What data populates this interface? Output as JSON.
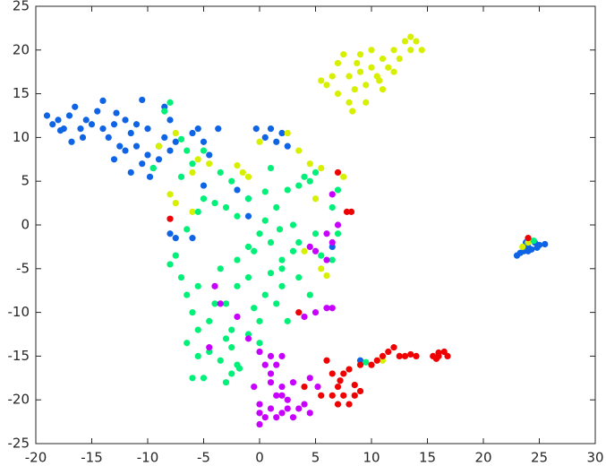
{
  "chart_data": {
    "type": "scatter",
    "xlim": [
      -20,
      30
    ],
    "ylim": [
      -25,
      25
    ],
    "xticks": [
      -20,
      -15,
      -10,
      -5,
      0,
      5,
      10,
      15,
      20,
      25,
      30
    ],
    "yticks": [
      -25,
      -20,
      -15,
      -10,
      -5,
      0,
      5,
      10,
      15,
      20,
      25
    ],
    "grid": false,
    "series": [
      {
        "color": "#0f64e6",
        "x": [
          -19,
          -18.5,
          -18,
          -17.5,
          -17,
          -16.5,
          -16,
          -15.8,
          -15.5,
          -15,
          -14.5,
          -14,
          -14,
          -13.5,
          -13,
          -12.5,
          -12,
          -12,
          -11.5,
          -11,
          -11,
          -10.5,
          -10.5,
          -10,
          -10,
          -9.5,
          -9,
          -9,
          -8.5,
          -8.5,
          -8,
          -8,
          -7.5,
          -9.8,
          -11.5,
          -13,
          -12.8,
          -17.8,
          -16.8,
          -5.5,
          -5,
          -4.5,
          -3.7,
          -6,
          -5,
          -1,
          -1,
          -0.3,
          1,
          2,
          1.5,
          0.5,
          2.5,
          -2,
          -6,
          -7.5,
          -8,
          23,
          23.3,
          23.6,
          24,
          24.3,
          24.6,
          25,
          25.5,
          24,
          23.8,
          24.8,
          9,
          6.5
        ],
        "y": [
          12.5,
          11.5,
          12,
          11,
          12.5,
          13.5,
          11,
          10,
          12,
          11.5,
          13,
          14.2,
          11,
          10,
          11.5,
          9,
          8.5,
          12,
          10.5,
          9,
          11.5,
          14.3,
          7,
          8,
          11,
          6.5,
          9,
          7.5,
          13.5,
          10,
          8.5,
          12,
          9.5,
          5.5,
          6,
          7.5,
          12.8,
          10.8,
          9.5,
          11,
          9.5,
          8,
          11,
          10.5,
          4.5,
          3,
          1,
          11,
          11,
          10.5,
          9.5,
          10,
          9,
          4,
          -1.5,
          -1.5,
          -1,
          -3.5,
          -3.2,
          -3,
          -2.5,
          -2.8,
          -2,
          -2.3,
          -2.2,
          -3,
          -2,
          -2.6,
          -15.5,
          -2.5
        ]
      },
      {
        "color": "#d7f000",
        "x": [
          5.5,
          6,
          6.5,
          7,
          7.5,
          8,
          8,
          8.3,
          8.5,
          9,
          9,
          9.5,
          9.5,
          10,
          10,
          10.5,
          11,
          11,
          11.5,
          12,
          12,
          12.5,
          13,
          13.5,
          13.5,
          14,
          14.5,
          10.7,
          7,
          8.7,
          -8,
          -7.5,
          -9,
          -7.5,
          -5.5,
          -4.5,
          -6,
          -2,
          -1.5,
          -1,
          0,
          2.5,
          3.5,
          4.5,
          5.5,
          5,
          7.5,
          -6,
          5.5,
          4,
          24,
          23.5,
          11,
          6
        ],
        "y": [
          16.5,
          16,
          17,
          18.5,
          19.5,
          17,
          14,
          13,
          15.5,
          17.5,
          19.5,
          16,
          14,
          18,
          20,
          17,
          19,
          15.5,
          18,
          20,
          17.5,
          19,
          21,
          20,
          21.5,
          21,
          20,
          16.5,
          15,
          18.5,
          3.5,
          2.5,
          9,
          10.5,
          7.5,
          7,
          6,
          6.8,
          6,
          5.5,
          9.5,
          10.5,
          8.5,
          7,
          6.5,
          3,
          5.5,
          1.5,
          -5,
          -3,
          -2,
          -2.5,
          -15.5,
          -5.8
        ]
      },
      {
        "color": "#00f078",
        "x": [
          -8,
          -8.5,
          -7,
          -9.5,
          -6.5,
          -6,
          -5,
          -7,
          -5,
          -3.5,
          -2.5,
          -4,
          -3,
          -2,
          -5.5,
          -6.5,
          -7.5,
          -8,
          -7,
          -6.5,
          -5.5,
          -6,
          -5.5,
          -6.5,
          -5.5,
          -5,
          -6,
          -4,
          -4.5,
          -3,
          -2.5,
          -3,
          -4.5,
          -3.5,
          -2.5,
          -3,
          -2,
          -1.8,
          -2,
          -3.5,
          -2,
          -1,
          -0.5,
          0,
          -1,
          0.5,
          1,
          1.5,
          2,
          1,
          0.5,
          1.5,
          2,
          2.5,
          0,
          -0.5,
          3,
          3.5,
          3,
          2.5,
          3.5,
          4.5,
          5,
          4,
          1,
          5,
          3.5,
          4.5,
          6.5,
          7,
          7,
          6.5,
          5.5,
          -1,
          -2.5,
          -1,
          0,
          9.5,
          24.5,
          2,
          1.8,
          0.5
        ],
        "y": [
          14,
          13,
          9.8,
          6.5,
          8.5,
          7,
          8.5,
          5.5,
          3,
          6,
          5,
          2.5,
          2,
          1,
          1.5,
          -0.5,
          -3.5,
          -4.5,
          -6,
          -8,
          -7,
          -10,
          -12,
          -13.5,
          -15,
          -17.5,
          -17.5,
          -9,
          -11,
          -9,
          -12,
          -13,
          -14.5,
          -15.5,
          -17,
          -18,
          -16,
          -16.4,
          -7,
          -5,
          -4,
          -6,
          -3,
          -1,
          -2.5,
          0.5,
          -2,
          2,
          -4,
          -5.5,
          -8,
          -9,
          -7,
          -11,
          -11,
          -9.5,
          -3,
          -6,
          0,
          4,
          4.5,
          5,
          6,
          5.5,
          6.5,
          -1,
          -2,
          -8,
          2,
          4,
          -1,
          -4,
          -3.5,
          3,
          -14,
          -12.5,
          -13.5,
          -15.7,
          -1.8,
          -5,
          -0.5,
          3.8
        ]
      },
      {
        "color": "#c800ff",
        "x": [
          0,
          0.5,
          1,
          1.5,
          2,
          1,
          2,
          1.5,
          2,
          3,
          0,
          0,
          0.5,
          0,
          1,
          1.5,
          2,
          2.5,
          3,
          3.5,
          4,
          4.5,
          2.5,
          -0.5,
          1,
          4.5,
          -1,
          -4,
          -3.5,
          -2,
          4,
          5,
          6,
          6.5,
          4.5,
          5,
          6,
          6.5,
          6,
          7,
          6.5,
          -4.5,
          5.2
        ],
        "y": [
          -14.5,
          -16,
          -17,
          -16,
          -15,
          -18,
          -18.5,
          -19.5,
          -19.5,
          -18,
          -20.5,
          -21.5,
          -22,
          -22.8,
          -21,
          -22,
          -21.5,
          -21,
          -22,
          -21,
          -20.5,
          -21.5,
          -20,
          -18.5,
          -15,
          -17.5,
          -13,
          -7,
          -9,
          -10.5,
          -10.5,
          -10,
          -9.5,
          -9.5,
          -2.5,
          -3,
          -1,
          -2,
          -4,
          0,
          3.5,
          -14,
          -18.5
        ]
      },
      {
        "color": "#f00000",
        "x": [
          6,
          6.5,
          5.5,
          6.5,
          7,
          7,
          7.5,
          8,
          8.5,
          8.5,
          9,
          7.5,
          8,
          9,
          10,
          10.5,
          11,
          11.5,
          12,
          12.5,
          13,
          13.5,
          15.5,
          16,
          16.5,
          16.8,
          16,
          15.8,
          4,
          7,
          7.8,
          8.2,
          -8,
          3.5,
          24,
          14,
          7.2
        ],
        "y": [
          -15.5,
          -17,
          -19.5,
          -19.5,
          -18.5,
          -20.5,
          -19.5,
          -20.5,
          -19.5,
          -18.3,
          -19,
          -17,
          -16.5,
          -16,
          -16,
          -15.5,
          -15,
          -14.5,
          -14,
          -15,
          -15,
          -14.8,
          -15,
          -15,
          -14.5,
          -15,
          -14.6,
          -15.3,
          -18.5,
          6,
          1.5,
          1.5,
          0.7,
          -10,
          -1.5,
          -15,
          -17.8
        ]
      }
    ]
  }
}
